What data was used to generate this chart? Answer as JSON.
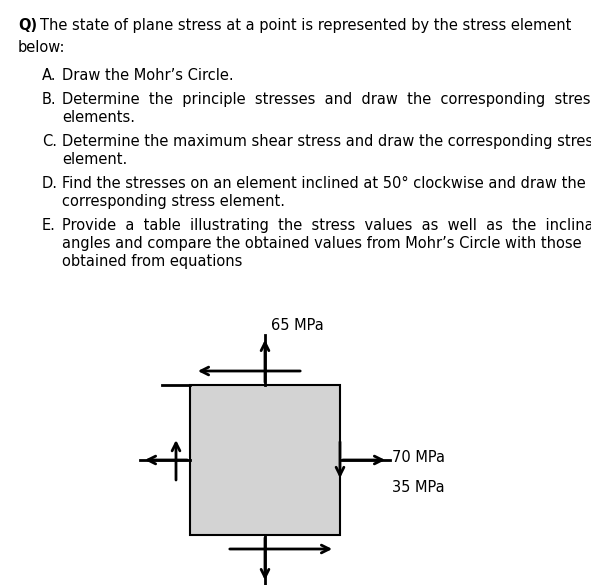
{
  "background_color": "#ffffff",
  "title_bold": "Q)",
  "title_rest": "The state of plane stress at a point is represented by the stress element",
  "title_line2": "below:",
  "items": [
    {
      "letter": "A.",
      "lines": [
        "Draw the Mohr’s Circle."
      ]
    },
    {
      "letter": "B.",
      "lines": [
        "Determine  the  principle  stresses  and  draw  the  corresponding  stress",
        "elements."
      ]
    },
    {
      "letter": "C.",
      "lines": [
        "Determine the maximum shear stress and draw the corresponding stress",
        "element."
      ]
    },
    {
      "letter": "D.",
      "lines": [
        "Find the stresses on an element inclined at 50° clockwise and draw the",
        "corresponding stress element."
      ]
    },
    {
      "letter": "E.",
      "lines": [
        "Provide  a  table  illustrating  the  stress  values  as  well  as  the  inclination",
        "angles and compare the obtained values from Mohr’s Circle with those",
        "obtained from equations"
      ]
    }
  ],
  "stress_top": "65 MPa",
  "stress_right": "70 MPa",
  "stress_bottom_right": "35 MPa",
  "box_facecolor": "#d3d3d3",
  "box_edgecolor": "#000000",
  "arrow_color": "#000000",
  "font_size": 10.5,
  "font_size_stress": 10.5
}
